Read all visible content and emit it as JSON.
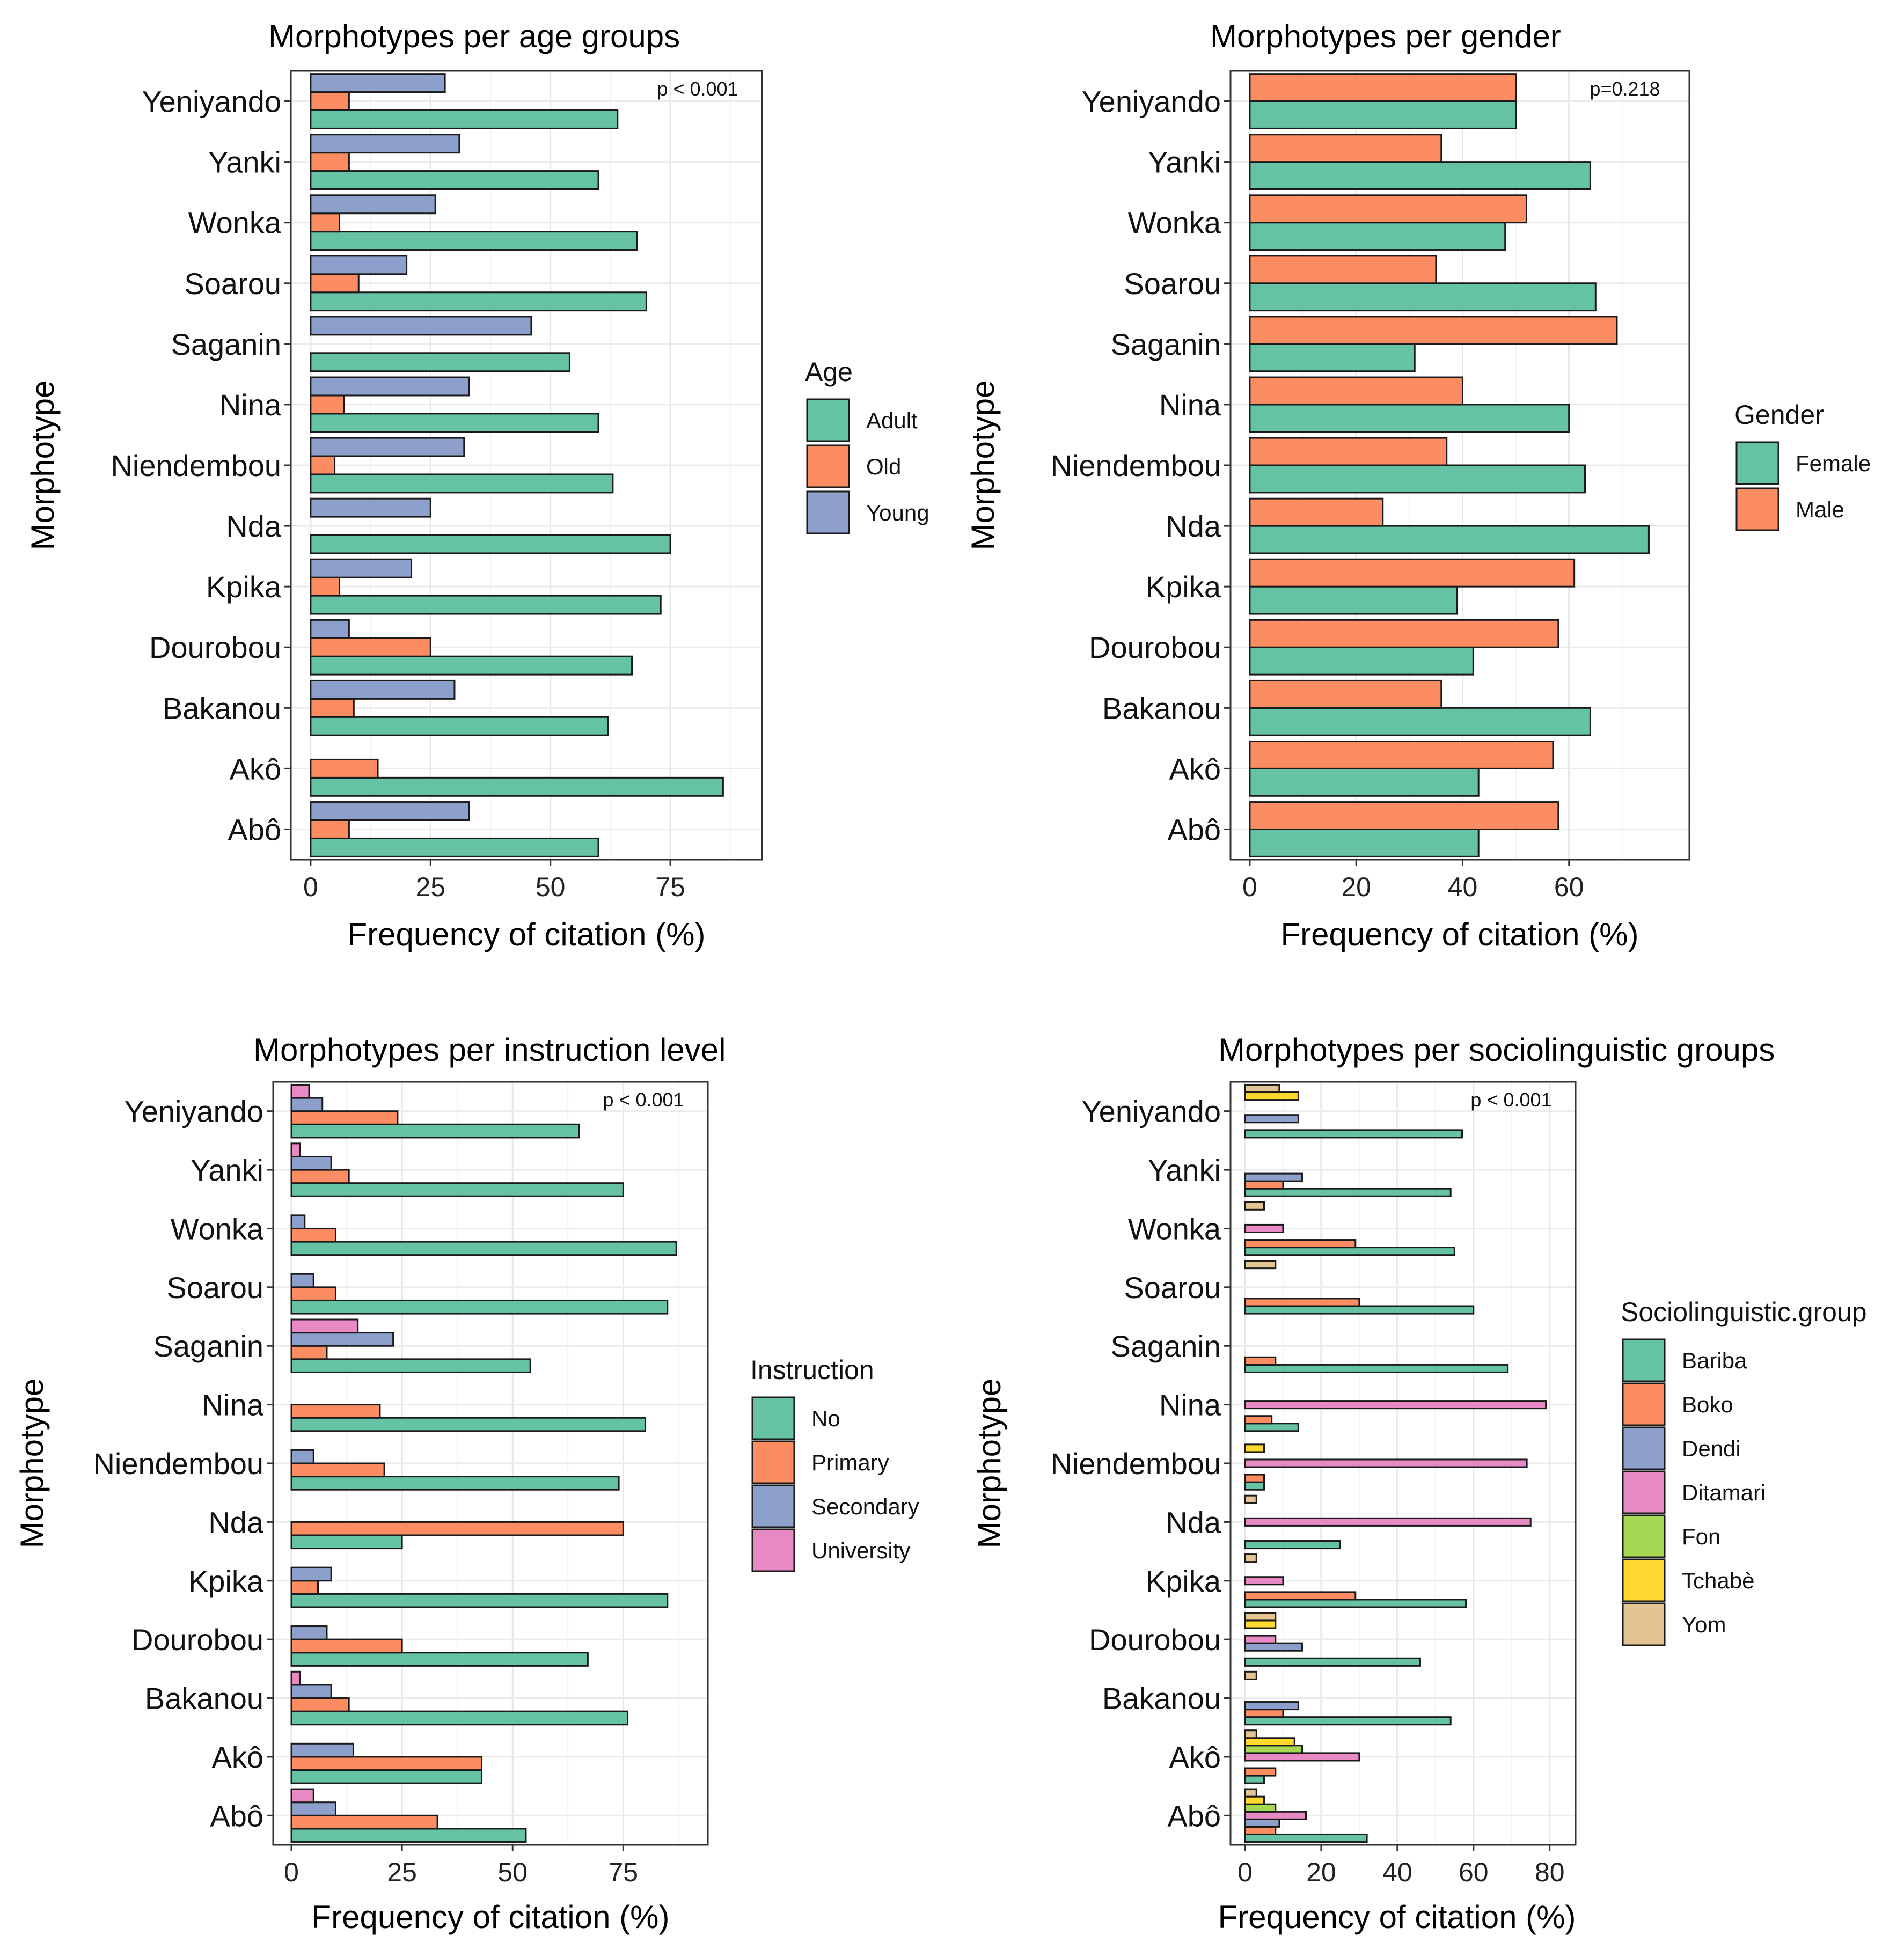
{
  "chart_data": [
    {
      "id": "age",
      "type": "bar",
      "orientation": "horizontal",
      "title": "Morphotypes per age groups",
      "xlabel": "Frequency of citation (%)",
      "ylabel": "Morphotype",
      "annotation": "p < 0.001",
      "xlim": [
        0,
        90
      ],
      "xticks": [
        "0",
        "25",
        "50",
        "75"
      ],
      "xtick_values": [
        0,
        25,
        50,
        75
      ],
      "categories": [
        "Yeniyando",
        "Yanki",
        "Wonka",
        "Soarou",
        "Saganin",
        "Nina",
        "Niendembou",
        "Nda",
        "Kpika",
        "Dourobou",
        "Bakanou",
        "Akô",
        "Abô"
      ],
      "legend_title": "Age",
      "series": [
        {
          "name": "Adult",
          "color": "#66c2a5",
          "values": [
            64,
            60,
            68,
            70,
            54,
            60,
            63,
            75,
            73,
            67,
            62,
            86,
            60
          ]
        },
        {
          "name": "Old",
          "color": "#fc8d62",
          "values": [
            8,
            8,
            6,
            10,
            0,
            7,
            5,
            0,
            6,
            25,
            9,
            14,
            8
          ]
        },
        {
          "name": "Young",
          "color": "#8da0cb",
          "values": [
            28,
            31,
            26,
            20,
            46,
            33,
            32,
            25,
            21,
            8,
            30,
            0,
            33
          ]
        }
      ]
    },
    {
      "id": "gender",
      "type": "bar",
      "orientation": "horizontal",
      "title": "Morphotypes per gender",
      "xlabel": "Frequency of citation (%)",
      "ylabel": "Morphotype",
      "annotation": "p=0.218",
      "xlim": [
        0,
        79
      ],
      "xticks": [
        "0",
        "20",
        "40",
        "60"
      ],
      "xtick_values": [
        0,
        20,
        40,
        60
      ],
      "categories": [
        "Yeniyando",
        "Yanki",
        "Wonka",
        "Soarou",
        "Saganin",
        "Nina",
        "Niendembou",
        "Nda",
        "Kpika",
        "Dourobou",
        "Bakanou",
        "Akô",
        "Abô"
      ],
      "legend_title": "Gender",
      "series": [
        {
          "name": "Female",
          "color": "#66c2a5",
          "values": [
            50,
            64,
            48,
            65,
            31,
            60,
            63,
            75,
            39,
            42,
            64,
            43,
            43
          ]
        },
        {
          "name": "Male",
          "color": "#fc8d62",
          "values": [
            50,
            36,
            52,
            35,
            69,
            40,
            37,
            25,
            61,
            58,
            36,
            57,
            58
          ]
        }
      ]
    },
    {
      "id": "instruction",
      "type": "bar",
      "orientation": "horizontal",
      "title": "Morphotypes per instruction level",
      "xlabel": "Frequency of citation (%)",
      "ylabel": "Morphotype",
      "annotation": "p < 0.001",
      "xlim": [
        0,
        90
      ],
      "xticks": [
        "0",
        "25",
        "50",
        "75"
      ],
      "xtick_values": [
        0,
        25,
        50,
        75
      ],
      "categories": [
        "Yeniyando",
        "Yanki",
        "Wonka",
        "Soarou",
        "Saganin",
        "Nina",
        "Niendembou",
        "Nda",
        "Kpika",
        "Dourobou",
        "Bakanou",
        "Akô",
        "Abô"
      ],
      "legend_title": "Instruction",
      "series": [
        {
          "name": "No",
          "color": "#66c2a5",
          "values": [
            65,
            75,
            87,
            85,
            54,
            80,
            74,
            25,
            85,
            67,
            76,
            43,
            53
          ]
        },
        {
          "name": "Primary",
          "color": "#fc8d62",
          "values": [
            24,
            13,
            10,
            10,
            8,
            20,
            21,
            75,
            6,
            25,
            13,
            43,
            33
          ]
        },
        {
          "name": "Secondary",
          "color": "#8da0cb",
          "values": [
            7,
            9,
            3,
            5,
            23,
            0,
            5,
            0,
            9,
            8,
            9,
            14,
            10
          ]
        },
        {
          "name": "University",
          "color": "#e78ac3",
          "values": [
            4,
            2,
            0,
            0,
            15,
            0,
            0,
            0,
            0,
            0,
            2,
            0,
            5
          ]
        }
      ]
    },
    {
      "id": "socio",
      "type": "bar",
      "orientation": "horizontal",
      "title": "Morphotypes per sociolinguistic groups",
      "xlabel": "Frequency of citation (%)",
      "ylabel": "Morphotype",
      "annotation": "p < 0.001",
      "xlim": [
        0,
        83
      ],
      "xticks": [
        "0",
        "20",
        "40",
        "60",
        "80"
      ],
      "xtick_values": [
        0,
        20,
        40,
        60,
        80
      ],
      "categories": [
        "Yeniyando",
        "Yanki",
        "Wonka",
        "Soarou",
        "Saganin",
        "Nina",
        "Niendembou",
        "Nda",
        "Kpika",
        "Dourobou",
        "Bakanou",
        "Akô",
        "Abô"
      ],
      "legend_title": "Sociolinguistic.group",
      "series": [
        {
          "name": "Bariba",
          "color": "#66c2a5",
          "values": [
            57,
            54,
            55,
            60,
            69,
            14,
            5,
            25,
            58,
            46,
            54,
            5,
            32
          ]
        },
        {
          "name": "Boko",
          "color": "#fc8d62",
          "values": [
            0,
            10,
            29,
            30,
            8,
            7,
            5,
            0,
            29,
            0,
            10,
            8,
            8
          ]
        },
        {
          "name": "Dendi",
          "color": "#8da0cb",
          "values": [
            14,
            15,
            0,
            0,
            0,
            0,
            0,
            0,
            0,
            15,
            14,
            0,
            9
          ]
        },
        {
          "name": "Ditamari",
          "color": "#e78ac3",
          "values": [
            0,
            0,
            10,
            0,
            0,
            79,
            74,
            75,
            10,
            8,
            0,
            30,
            16
          ]
        },
        {
          "name": "Fon",
          "color": "#a6d854",
          "values": [
            0,
            0,
            0,
            0,
            0,
            0,
            0,
            0,
            0,
            0,
            0,
            15,
            8
          ]
        },
        {
          "name": "Tchabè",
          "color": "#ffd92f",
          "values": [
            14,
            0,
            0,
            0,
            0,
            0,
            5,
            0,
            0,
            8,
            0,
            13,
            5
          ]
        },
        {
          "name": "Yom",
          "color": "#e5c494",
          "values": [
            9,
            0,
            5,
            8,
            0,
            0,
            0,
            3,
            3,
            8,
            3,
            3,
            3
          ]
        }
      ]
    }
  ]
}
